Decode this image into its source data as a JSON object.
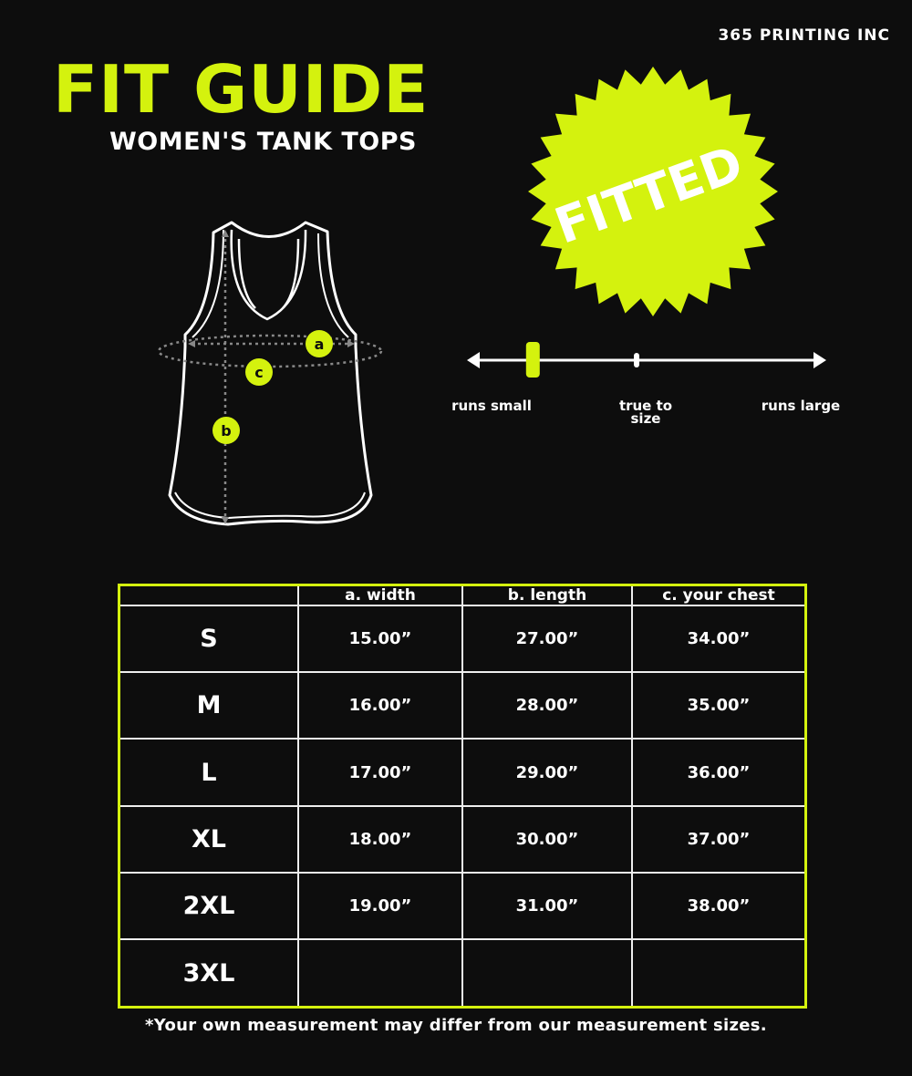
{
  "brand": "365 PRINTING INC",
  "title": "FIT GUIDE",
  "subtitle": "WOMEN'S TANK TOPS",
  "fit_badge": "FITTED",
  "colors": {
    "accent": "#d4f20e",
    "background": "#0d0d0d",
    "line": "#ffffff"
  },
  "diagram": {
    "labels": {
      "width": "a",
      "chest": "c",
      "length": "b"
    }
  },
  "fit_scale": {
    "labels": {
      "small": "runs small",
      "true": "true to size",
      "large": "runs large"
    },
    "position_label": "runs small",
    "position_fraction": 0.17
  },
  "table": {
    "headers": [
      "",
      "a. width",
      "b. length",
      "c. your chest"
    ],
    "rows": [
      {
        "size": "S",
        "width": "15.00”",
        "length": "27.00”",
        "chest": "34.00”"
      },
      {
        "size": "M",
        "width": "16.00”",
        "length": "28.00”",
        "chest": "35.00”"
      },
      {
        "size": "L",
        "width": "17.00”",
        "length": "29.00”",
        "chest": "36.00”"
      },
      {
        "size": "XL",
        "width": "18.00”",
        "length": "30.00”",
        "chest": "37.00”"
      },
      {
        "size": "2XL",
        "width": "19.00”",
        "length": "31.00”",
        "chest": "38.00”"
      },
      {
        "size": "3XL",
        "width": "",
        "length": "",
        "chest": ""
      }
    ]
  },
  "footnote": "*Your own measurement may differ from our measurement sizes."
}
